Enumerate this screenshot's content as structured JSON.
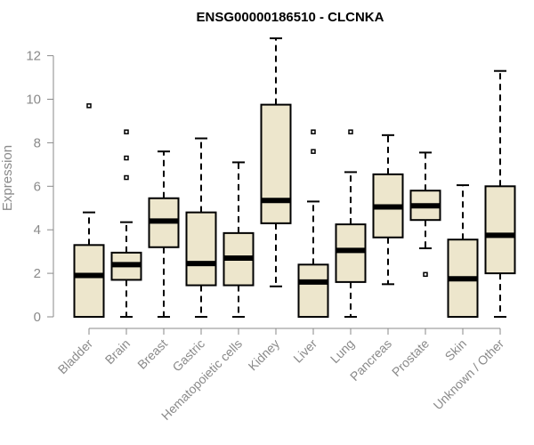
{
  "chart_data": {
    "type": "boxplot",
    "title": "ENSG00000186510 - CLCNKA",
    "xlabel": "",
    "ylabel": "Expression",
    "ylim": [
      0,
      12.8
    ],
    "yticks": [
      0,
      2,
      4,
      6,
      8,
      10,
      12
    ],
    "grid": false,
    "box_color": "#ede6cc",
    "outline_color": "#000000",
    "axis_color": "#8a8a8a",
    "categories": [
      "Bladder",
      "Brain",
      "Breast",
      "Gastric",
      "Hematopoietic cells",
      "Kidney",
      "Liver",
      "Lung",
      "Pancreas",
      "Prostate",
      "Skin",
      "Unknown / Other"
    ],
    "boxes": [
      {
        "whisker_low": 0,
        "q1": 0,
        "median": 1.9,
        "q3": 3.3,
        "whisker_high": 4.8,
        "outliers": [
          9.7
        ]
      },
      {
        "whisker_low": 0,
        "q1": 1.7,
        "median": 2.4,
        "q3": 2.95,
        "whisker_high": 4.35,
        "outliers": [
          6.4,
          7.3,
          8.5
        ]
      },
      {
        "whisker_low": 0,
        "q1": 3.2,
        "median": 4.4,
        "q3": 5.45,
        "whisker_high": 7.6,
        "outliers": []
      },
      {
        "whisker_low": 0,
        "q1": 1.45,
        "median": 2.45,
        "q3": 4.8,
        "whisker_high": 8.2,
        "outliers": []
      },
      {
        "whisker_low": 0,
        "q1": 1.45,
        "median": 2.7,
        "q3": 3.85,
        "whisker_high": 7.1,
        "outliers": []
      },
      {
        "whisker_low": 1.4,
        "q1": 4.3,
        "median": 5.35,
        "q3": 9.75,
        "whisker_high": 12.8,
        "outliers": []
      },
      {
        "whisker_low": 0,
        "q1": 0,
        "median": 1.6,
        "q3": 2.4,
        "whisker_high": 5.3,
        "outliers": [
          7.6,
          8.5
        ]
      },
      {
        "whisker_low": 0,
        "q1": 1.6,
        "median": 3.05,
        "q3": 4.25,
        "whisker_high": 6.65,
        "outliers": [
          8.5
        ]
      },
      {
        "whisker_low": 1.5,
        "q1": 3.65,
        "median": 5.05,
        "q3": 6.55,
        "whisker_high": 8.35,
        "outliers": []
      },
      {
        "whisker_low": 3.15,
        "q1": 4.45,
        "median": 5.1,
        "q3": 5.8,
        "whisker_high": 7.55,
        "outliers": [
          1.95
        ]
      },
      {
        "whisker_low": 0,
        "q1": 0,
        "median": 1.75,
        "q3": 3.55,
        "whisker_high": 6.05,
        "outliers": []
      },
      {
        "whisker_low": 0,
        "q1": 2.0,
        "median": 3.75,
        "q3": 6.0,
        "whisker_high": 11.3,
        "outliers": []
      }
    ]
  }
}
